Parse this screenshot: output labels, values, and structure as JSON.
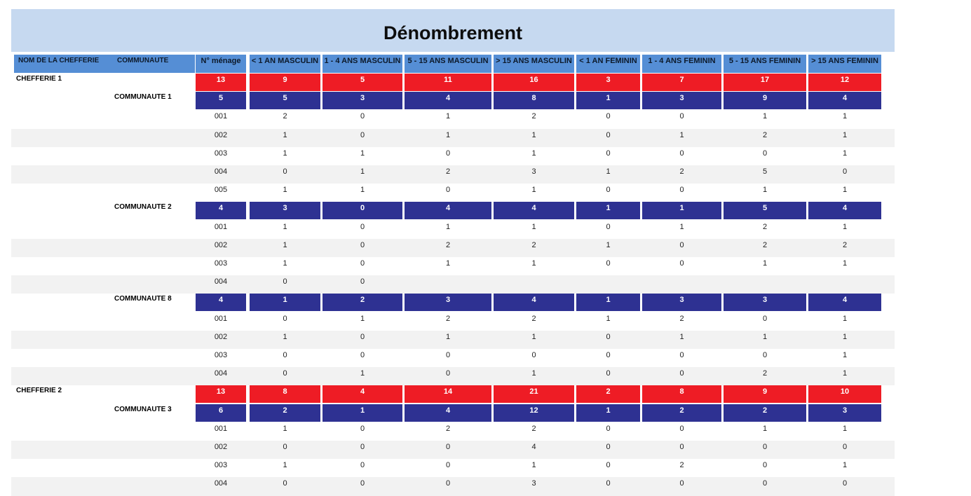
{
  "title": "Dénombrement",
  "headers": [
    "NOM DE LA CHEFFERIE",
    "COMMUNAUTE",
    "N° ménage",
    "< 1 AN MASCULIN",
    "1 - 4 ANS MASCULIN",
    "5 - 15 ANS MASCULIN",
    "> 15 ANS MASCULIN",
    "< 1 AN FEMININ",
    "1 - 4 ANS FEMININ",
    "5 - 15 ANS FEMININ",
    "> 15 ANS FEMININ"
  ],
  "rows": [
    {
      "type": "chefferie",
      "label": "CHEFFERIE 1",
      "values": [
        "13",
        "9",
        "5",
        "11",
        "16",
        "3",
        "7",
        "17",
        "12"
      ]
    },
    {
      "type": "communaute",
      "label": "COMMUNAUTE 1",
      "values": [
        "5",
        "5",
        "3",
        "4",
        "8",
        "1",
        "3",
        "9",
        "4"
      ]
    },
    {
      "type": "menage",
      "values": [
        "001",
        "2",
        "0",
        "1",
        "2",
        "0",
        "0",
        "1",
        "1"
      ]
    },
    {
      "type": "menage",
      "values": [
        "002",
        "1",
        "0",
        "1",
        "1",
        "0",
        "1",
        "2",
        "1"
      ]
    },
    {
      "type": "menage",
      "values": [
        "003",
        "1",
        "1",
        "0",
        "1",
        "0",
        "0",
        "0",
        "1"
      ]
    },
    {
      "type": "menage",
      "values": [
        "004",
        "0",
        "1",
        "2",
        "3",
        "1",
        "2",
        "5",
        "0"
      ]
    },
    {
      "type": "menage",
      "values": [
        "005",
        "1",
        "1",
        "0",
        "1",
        "0",
        "0",
        "1",
        "1"
      ]
    },
    {
      "type": "communaute",
      "label": "COMMUNAUTE 2",
      "values": [
        "4",
        "3",
        "0",
        "4",
        "4",
        "1",
        "1",
        "5",
        "4"
      ]
    },
    {
      "type": "menage",
      "values": [
        "001",
        "1",
        "0",
        "1",
        "1",
        "0",
        "1",
        "2",
        "1"
      ]
    },
    {
      "type": "menage",
      "values": [
        "002",
        "1",
        "0",
        "2",
        "2",
        "1",
        "0",
        "2",
        "2"
      ]
    },
    {
      "type": "menage",
      "values": [
        "003",
        "1",
        "0",
        "1",
        "1",
        "0",
        "0",
        "1",
        "1"
      ]
    },
    {
      "type": "menage",
      "values": [
        "004",
        "0",
        "0",
        "",
        "",
        "",
        "",
        "",
        ""
      ]
    },
    {
      "type": "communaute",
      "label": "COMMUNAUTE 8",
      "values": [
        "4",
        "1",
        "2",
        "3",
        "4",
        "1",
        "3",
        "3",
        "4"
      ]
    },
    {
      "type": "menage",
      "values": [
        "001",
        "0",
        "1",
        "2",
        "2",
        "1",
        "2",
        "0",
        "1"
      ]
    },
    {
      "type": "menage",
      "values": [
        "002",
        "1",
        "0",
        "1",
        "1",
        "0",
        "1",
        "1",
        "1"
      ]
    },
    {
      "type": "menage",
      "values": [
        "003",
        "0",
        "0",
        "0",
        "0",
        "0",
        "0",
        "0",
        "1"
      ]
    },
    {
      "type": "menage",
      "values": [
        "004",
        "0",
        "1",
        "0",
        "1",
        "0",
        "0",
        "2",
        "1"
      ]
    },
    {
      "type": "chefferie",
      "label": "CHEFFERIE 2",
      "values": [
        "13",
        "8",
        "4",
        "14",
        "21",
        "2",
        "8",
        "9",
        "10"
      ]
    },
    {
      "type": "communaute",
      "label": "COMMUNAUTE 3",
      "values": [
        "6",
        "2",
        "1",
        "4",
        "12",
        "1",
        "2",
        "2",
        "3"
      ]
    },
    {
      "type": "menage",
      "values": [
        "001",
        "1",
        "0",
        "2",
        "2",
        "0",
        "0",
        "1",
        "1"
      ]
    },
    {
      "type": "menage",
      "values": [
        "002",
        "0",
        "0",
        "0",
        "4",
        "0",
        "0",
        "0",
        "0"
      ]
    },
    {
      "type": "menage",
      "values": [
        "003",
        "1",
        "0",
        "0",
        "1",
        "0",
        "2",
        "0",
        "1"
      ]
    },
    {
      "type": "menage",
      "values": [
        "004",
        "0",
        "0",
        "0",
        "3",
        "0",
        "0",
        "0",
        "0"
      ]
    }
  ],
  "colors": {
    "title_band": "#c6d9f0",
    "header": "#558ed5",
    "chefferie_total": "#ee1c25",
    "communaute_total": "#2e3192",
    "alt_row": "#f2f2f2"
  }
}
